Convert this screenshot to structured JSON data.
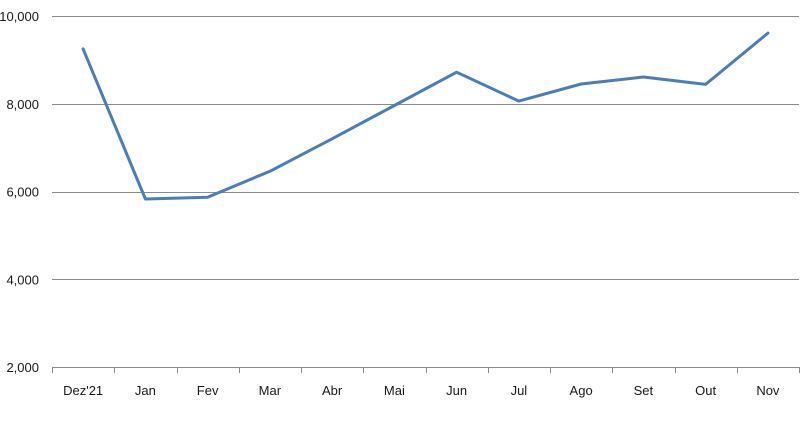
{
  "chart_data": {
    "type": "line",
    "title": "",
    "xlabel": "",
    "ylabel": "",
    "categories": [
      "Dez'21",
      "Jan",
      "Fev",
      "Mar",
      "Abr",
      "Mai",
      "Jun",
      "Jul",
      "Ago",
      "Set",
      "Out",
      "Nov"
    ],
    "series": [
      {
        "values": [
          9250,
          5830,
          5870,
          6460,
          7200,
          7960,
          8720,
          8060,
          8450,
          8610,
          8440,
          9610
        ]
      }
    ],
    "ylim": [
      2000,
      10000
    ],
    "yticks": [
      2000,
      4000,
      6000,
      8000,
      10000
    ],
    "ytick_labels": [
      "2,000",
      "4,000",
      "6,000",
      "8,000",
      "10,000"
    ],
    "grid": true,
    "line_color": "#4a7ebb",
    "grid_color": "#8c8c8c",
    "axis_color": "#8c8c8c"
  }
}
